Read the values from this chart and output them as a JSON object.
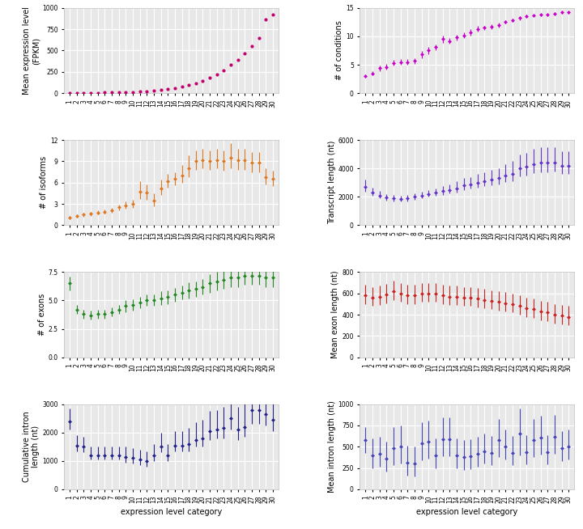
{
  "categories": [
    "1",
    "2",
    "3",
    "4",
    "5",
    "6",
    "7",
    "8",
    "9",
    "10",
    "11",
    "12",
    "13",
    "14",
    "15",
    "16",
    "17",
    "18",
    "19",
    "20",
    "21",
    "22",
    "23",
    "24",
    "25",
    "26",
    "27",
    "28",
    "29",
    "30"
  ],
  "n": 30,
  "bg_color": "#e8e8e8",
  "grid_color": "#ffffff",
  "mean_expr": {
    "ylabel": "Mean expression level\n(FPKM)",
    "color": "#c2006e",
    "ylim": [
      0,
      1000
    ],
    "yticks": [
      0,
      250,
      500,
      750,
      1000
    ],
    "means": [
      2,
      3,
      4,
      5,
      6,
      7,
      8,
      9,
      11,
      14,
      18,
      22,
      27,
      35,
      45,
      60,
      75,
      95,
      115,
      145,
      180,
      220,
      270,
      330,
      395,
      470,
      555,
      650,
      870,
      920
    ],
    "yerr_lo": [
      0,
      0,
      0,
      0,
      0,
      0,
      0,
      0,
      0,
      0,
      0,
      0,
      0,
      0,
      0,
      0,
      0,
      0,
      0,
      0,
      0,
      0,
      0,
      0,
      0,
      0,
      0,
      0,
      0,
      0
    ],
    "yerr_hi": [
      0,
      0,
      0,
      0,
      0,
      0,
      0,
      0,
      0,
      0,
      0,
      0,
      0,
      0,
      0,
      0,
      0,
      0,
      0,
      0,
      0,
      0,
      0,
      0,
      0,
      0,
      0,
      0,
      0,
      0
    ],
    "has_errors": false
  },
  "num_conditions": {
    "ylabel": "# of conditions",
    "color": "#cc00cc",
    "ylim": [
      0,
      15
    ],
    "yticks": [
      0,
      5,
      10,
      15
    ],
    "means": [
      3.0,
      3.5,
      4.4,
      4.6,
      5.3,
      5.5,
      5.5,
      5.7,
      6.8,
      7.5,
      8.1,
      9.5,
      9.2,
      9.8,
      10.2,
      10.7,
      11.3,
      11.5,
      11.7,
      12.0,
      12.5,
      12.8,
      13.2,
      13.5,
      13.7,
      13.8,
      13.8,
      14.0,
      14.2,
      14.2
    ],
    "yerr_lo": [
      0.3,
      0.4,
      0.5,
      0.5,
      0.5,
      0.5,
      0.5,
      0.5,
      0.6,
      0.6,
      0.5,
      0.6,
      0.5,
      0.5,
      0.5,
      0.5,
      0.5,
      0.4,
      0.4,
      0.4,
      0.3,
      0.3,
      0.3,
      0.3,
      0.2,
      0.2,
      0.2,
      0.2,
      0.2,
      0.2
    ],
    "yerr_hi": [
      0.3,
      0.4,
      0.5,
      0.5,
      0.5,
      0.5,
      0.5,
      0.5,
      0.6,
      0.6,
      0.5,
      0.6,
      0.5,
      0.5,
      0.5,
      0.5,
      0.5,
      0.4,
      0.4,
      0.4,
      0.3,
      0.3,
      0.3,
      0.3,
      0.2,
      0.2,
      0.2,
      0.2,
      0.2,
      0.2
    ],
    "has_errors": true
  },
  "num_isoforms": {
    "ylabel": "# of isoforms",
    "color": "#e07820",
    "ylim": [
      0,
      12
    ],
    "yticks": [
      0,
      3,
      6,
      9,
      12
    ],
    "means": [
      1.1,
      1.3,
      1.5,
      1.6,
      1.8,
      1.9,
      2.1,
      2.5,
      2.8,
      3.0,
      4.7,
      4.6,
      3.5,
      5.2,
      6.2,
      6.5,
      7.0,
      8.0,
      9.0,
      9.2,
      9.0,
      9.2,
      9.0,
      9.5,
      9.2,
      9.2,
      8.8,
      8.8,
      6.8,
      6.5
    ],
    "yerr_lo": [
      0.2,
      0.2,
      0.3,
      0.3,
      0.3,
      0.3,
      0.3,
      0.4,
      0.5,
      0.6,
      1.0,
      1.0,
      0.8,
      0.9,
      0.9,
      0.9,
      1.0,
      1.2,
      1.2,
      1.2,
      1.2,
      1.2,
      1.3,
      1.5,
      1.4,
      1.4,
      1.3,
      1.3,
      1.0,
      1.0
    ],
    "yerr_hi": [
      0.2,
      0.2,
      0.3,
      0.3,
      0.3,
      0.3,
      0.3,
      0.4,
      0.5,
      0.6,
      1.5,
      1.2,
      1.0,
      1.2,
      1.0,
      1.0,
      1.5,
      1.8,
      1.5,
      1.5,
      1.5,
      1.5,
      1.5,
      2.0,
      1.5,
      1.5,
      1.5,
      1.5,
      1.2,
      1.2
    ],
    "has_errors": true
  },
  "transcript_length": {
    "ylabel": "Transcript length (nt)",
    "color": "#6633cc",
    "ylim": [
      0,
      6000
    ],
    "yticks": [
      0,
      2000,
      4000,
      6000
    ],
    "means": [
      2700,
      2300,
      2100,
      1950,
      1900,
      1850,
      1900,
      2000,
      2100,
      2200,
      2300,
      2400,
      2500,
      2600,
      2800,
      2900,
      3000,
      3100,
      3200,
      3300,
      3500,
      3600,
      4000,
      4100,
      4300,
      4400,
      4400,
      4400,
      4200,
      4200
    ],
    "yerr_lo": [
      350,
      250,
      200,
      200,
      200,
      200,
      200,
      200,
      200,
      200,
      200,
      250,
      250,
      300,
      300,
      300,
      350,
      350,
      400,
      400,
      450,
      500,
      550,
      600,
      650,
      650,
      650,
      600,
      600,
      600
    ],
    "yerr_hi": [
      500,
      350,
      300,
      250,
      250,
      250,
      250,
      250,
      250,
      250,
      300,
      350,
      400,
      500,
      500,
      500,
      600,
      600,
      700,
      700,
      800,
      900,
      1000,
      1000,
      1100,
      1100,
      1100,
      1100,
      1000,
      1000
    ],
    "has_errors": true
  },
  "num_exons": {
    "ylabel": "# of exons",
    "color": "#228822",
    "ylim": [
      0,
      7.5
    ],
    "yticks": [
      0.0,
      2.5,
      5.0,
      7.5
    ],
    "means": [
      6.5,
      4.2,
      3.8,
      3.7,
      3.8,
      3.8,
      4.0,
      4.2,
      4.5,
      4.6,
      4.8,
      5.0,
      5.0,
      5.2,
      5.3,
      5.5,
      5.7,
      5.9,
      6.0,
      6.2,
      6.5,
      6.7,
      6.8,
      7.0,
      7.0,
      7.2,
      7.2,
      7.2,
      7.0,
      7.0
    ],
    "yerr_lo": [
      0.6,
      0.4,
      0.4,
      0.4,
      0.4,
      0.4,
      0.4,
      0.4,
      0.5,
      0.5,
      0.5,
      0.5,
      0.5,
      0.6,
      0.6,
      0.6,
      0.6,
      0.7,
      0.7,
      0.7,
      0.8,
      0.8,
      0.8,
      0.8,
      0.8,
      0.8,
      0.8,
      0.8,
      0.8,
      0.8
    ],
    "yerr_hi": [
      0.6,
      0.4,
      0.4,
      0.4,
      0.4,
      0.4,
      0.4,
      0.4,
      0.5,
      0.5,
      0.5,
      0.5,
      0.5,
      0.6,
      0.6,
      0.6,
      0.6,
      0.7,
      0.7,
      0.7,
      0.8,
      0.8,
      0.8,
      0.8,
      0.8,
      0.8,
      0.8,
      0.8,
      0.8,
      0.8
    ],
    "has_errors": true
  },
  "mean_exon_length": {
    "ylabel": "Mean exon length (nt)",
    "color": "#cc2222",
    "ylim": [
      0,
      800
    ],
    "yticks": [
      0,
      200,
      400,
      600,
      800
    ],
    "means": [
      580,
      560,
      570,
      590,
      620,
      600,
      580,
      580,
      600,
      600,
      600,
      580,
      570,
      570,
      560,
      560,
      550,
      540,
      530,
      520,
      510,
      500,
      480,
      460,
      450,
      430,
      420,
      400,
      390,
      380
    ],
    "yerr_lo": [
      80,
      80,
      80,
      80,
      80,
      80,
      80,
      80,
      80,
      80,
      80,
      80,
      80,
      80,
      80,
      80,
      80,
      80,
      80,
      80,
      80,
      80,
      80,
      80,
      80,
      80,
      80,
      80,
      80,
      80
    ],
    "yerr_hi": [
      100,
      100,
      100,
      100,
      100,
      100,
      100,
      100,
      100,
      100,
      100,
      100,
      100,
      100,
      100,
      100,
      100,
      100,
      100,
      100,
      100,
      100,
      100,
      100,
      100,
      100,
      100,
      100,
      100,
      100
    ],
    "has_errors": true
  },
  "cumulative_intron_length": {
    "ylabel": "Cumulative intron\nlength (nt)",
    "color": "#22228a",
    "ylim": [
      0,
      3000
    ],
    "yticks": [
      0,
      1000,
      2000,
      3000
    ],
    "means": [
      2400,
      1550,
      1500,
      1200,
      1200,
      1200,
      1200,
      1200,
      1150,
      1100,
      1050,
      1000,
      1200,
      1500,
      1200,
      1550,
      1550,
      1600,
      1750,
      1800,
      2050,
      2100,
      2150,
      2500,
      2100,
      2200,
      2800,
      2800,
      2650,
      2450
    ],
    "yerr_lo": [
      300,
      200,
      200,
      150,
      150,
      150,
      150,
      150,
      200,
      200,
      200,
      200,
      200,
      200,
      200,
      200,
      200,
      250,
      250,
      300,
      300,
      300,
      350,
      400,
      350,
      350,
      500,
      500,
      400,
      400
    ],
    "yerr_hi": [
      450,
      350,
      350,
      300,
      300,
      300,
      300,
      300,
      350,
      350,
      350,
      350,
      400,
      500,
      400,
      500,
      500,
      550,
      600,
      650,
      700,
      700,
      750,
      900,
      800,
      850,
      1200,
      1200,
      1000,
      900
    ],
    "has_errors": true
  },
  "mean_intron_length": {
    "ylabel": "Mean intron length (nt)",
    "color": "#4444bb",
    "ylim": [
      0,
      1000
    ],
    "yticks": [
      0,
      250,
      500,
      750,
      1000
    ],
    "means": [
      580,
      400,
      420,
      360,
      480,
      500,
      310,
      300,
      540,
      560,
      400,
      590,
      590,
      400,
      380,
      390,
      420,
      450,
      430,
      580,
      500,
      430,
      650,
      440,
      580,
      610,
      440,
      620,
      480,
      500
    ],
    "yerr_lo": [
      150,
      150,
      150,
      150,
      200,
      200,
      150,
      150,
      200,
      200,
      150,
      200,
      200,
      150,
      150,
      150,
      150,
      150,
      150,
      200,
      150,
      150,
      250,
      150,
      200,
      200,
      150,
      200,
      150,
      150
    ],
    "yerr_hi": [
      150,
      200,
      200,
      200,
      250,
      250,
      200,
      200,
      250,
      250,
      200,
      250,
      250,
      200,
      200,
      200,
      200,
      200,
      200,
      250,
      200,
      200,
      300,
      200,
      250,
      250,
      200,
      250,
      200,
      200
    ],
    "has_errors": true
  },
  "xlabel": "expression level category",
  "label_fontsize": 7,
  "tick_fontsize": 5.5
}
